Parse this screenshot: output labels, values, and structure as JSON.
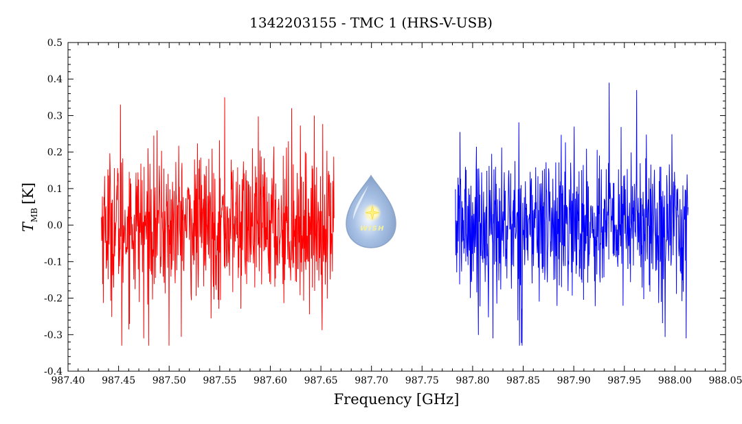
{
  "chart_data": {
    "type": "line",
    "title": "1342203155 - TMC 1 (HRS-V-USB)",
    "xlabel": "Frequency [GHz]",
    "ylabel_main": "T",
    "ylabel_sub": "MB",
    "ylabel_unit": "[K]",
    "xlim": [
      987.4,
      988.05
    ],
    "ylim": [
      -0.4,
      0.5
    ],
    "xticks": [
      "987.40",
      "987.45",
      "987.50",
      "987.55",
      "987.60",
      "987.65",
      "987.70",
      "987.75",
      "987.80",
      "987.85",
      "987.90",
      "987.95",
      "988.00",
      "988.05"
    ],
    "yticks": [
      "-0.4",
      "-0.3",
      "-0.2",
      "-0.1",
      "0.0",
      "0.1",
      "0.2",
      "0.3",
      "0.4",
      "0.5"
    ],
    "grid": false,
    "series": [
      {
        "color": "#ff0000",
        "x_range": [
          987.433,
          987.663
        ],
        "noise_sigma": 0.1,
        "peaks": [
          {
            "x": 987.452,
            "y": 0.33
          },
          {
            "x": 987.555,
            "y": 0.35
          },
          {
            "x": 987.621,
            "y": 0.32
          },
          {
            "x": 987.453,
            "y": -0.33
          },
          {
            "x": 987.5,
            "y": -0.33
          },
          {
            "x": 987.475,
            "y": -0.31
          }
        ]
      },
      {
        "color": "#0000ff",
        "x_range": [
          987.783,
          988.013
        ],
        "noise_sigma": 0.1,
        "peaks": [
          {
            "x": 987.935,
            "y": 0.39
          },
          {
            "x": 987.962,
            "y": 0.37
          },
          {
            "x": 987.849,
            "y": -0.33
          },
          {
            "x": 987.82,
            "y": -0.31
          },
          {
            "x": 988.011,
            "y": -0.31
          }
        ]
      }
    ]
  },
  "logo": {
    "text": "WISH"
  }
}
